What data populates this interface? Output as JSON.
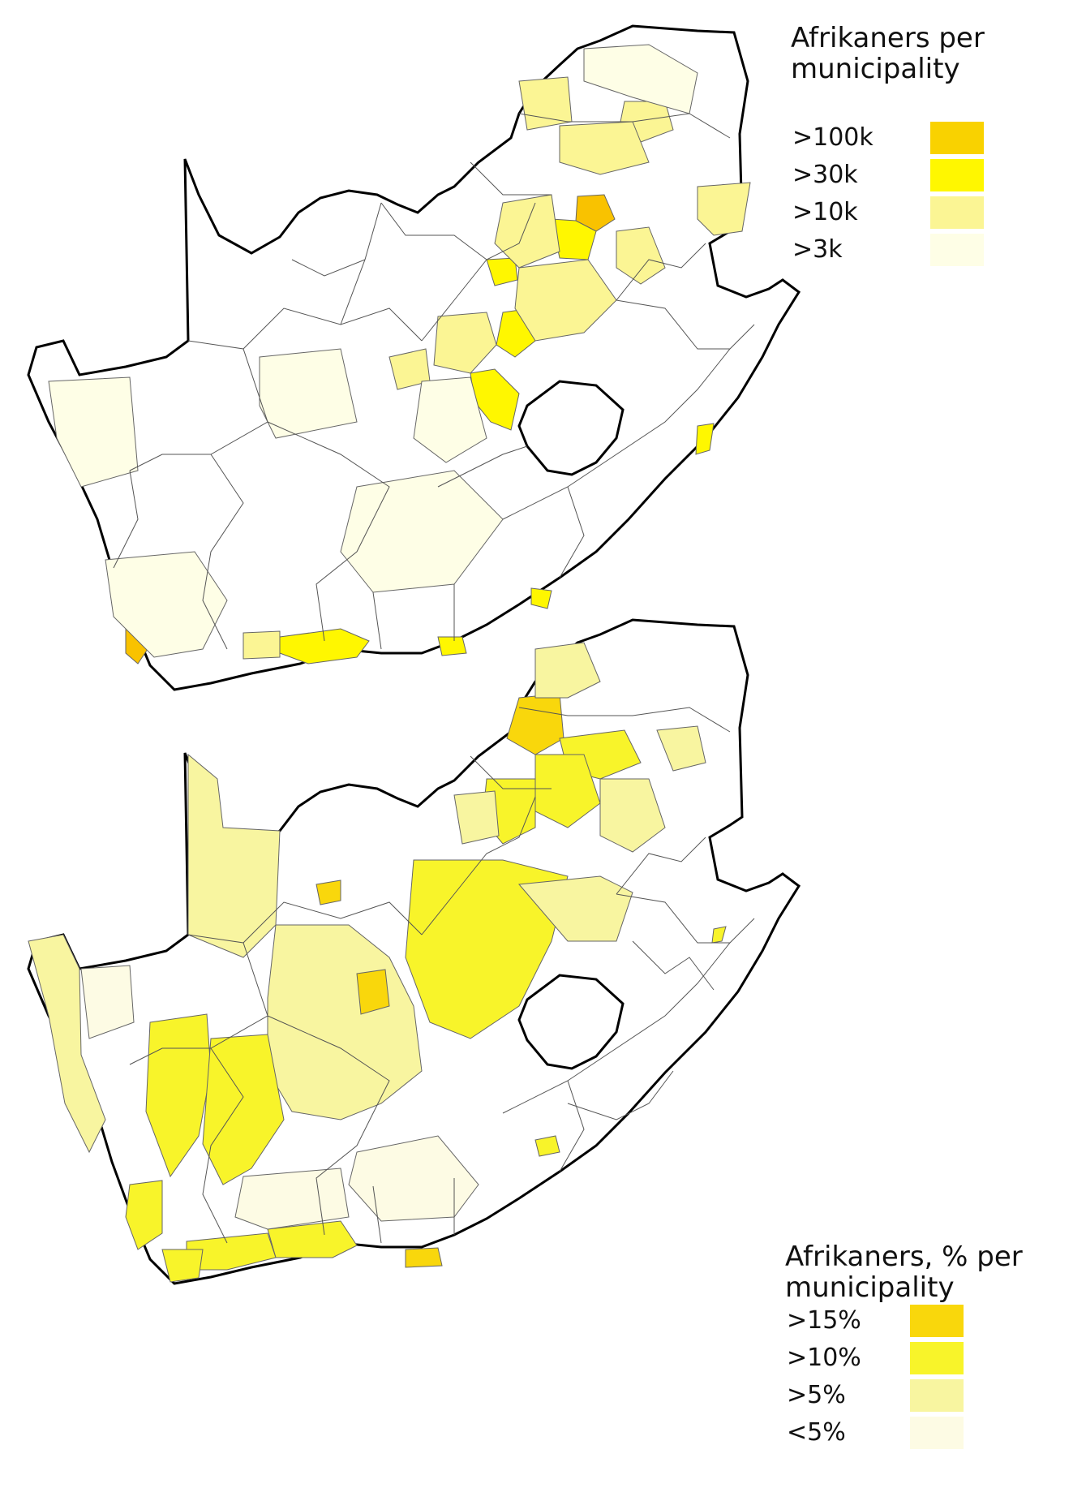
{
  "maps": [
    {
      "title": "Afrikaners per\nmunicipality",
      "legend": [
        {
          "label": ">100k",
          "color": "#f9d200"
        },
        {
          "label": ">30k",
          "color": "#fff700"
        },
        {
          "label": ">10k",
          "color": "#fbf594"
        },
        {
          "label": ">3k",
          "color": "#fefee6"
        }
      ]
    },
    {
      "title": "Afrikaners, % per\nmunicipality",
      "legend": [
        {
          "label": ">15%",
          "color": "#f9d70c"
        },
        {
          "label": ">10%",
          "color": "#f8f42a"
        },
        {
          "label": ">5%",
          "color": "#f8f5a0"
        },
        {
          "label": "<5%",
          "color": "#fdfbe4"
        }
      ]
    }
  ]
}
